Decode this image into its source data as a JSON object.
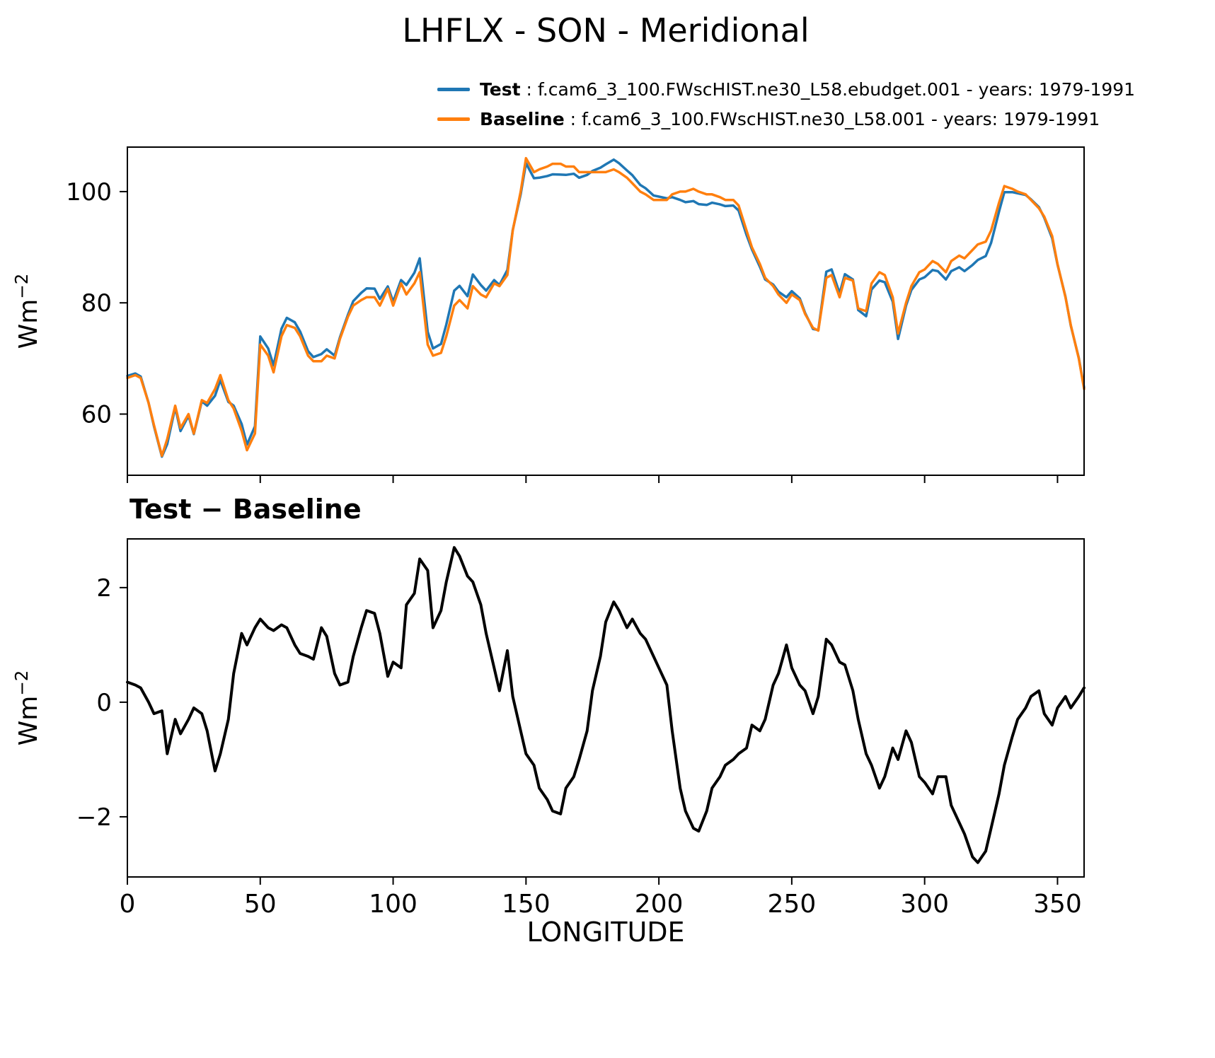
{
  "title": "LHFLX - SON - Meridional",
  "legend": [
    {
      "name": "Test",
      "text": " : f.cam6_3_100.FWscHIST.ne30_L58.ebudget.001 - years: 1979-1991",
      "color": "#1f77b4"
    },
    {
      "name": "Baseline",
      "text": " : f.cam6_3_100.FWscHIST.ne30_L58.001 - years: 1979-1991",
      "color": "#ff7f0e"
    }
  ],
  "chart_data": [
    {
      "type": "line",
      "panel": "main",
      "ylabel_base": "Wm",
      "ylabel_exp": "−2",
      "xlim": [
        0,
        360
      ],
      "ylim": [
        49,
        108
      ],
      "yticks": [
        60,
        80,
        100
      ],
      "ytick_labels": [
        "60",
        "80",
        "100"
      ],
      "xticks": [
        0,
        50,
        100,
        150,
        200,
        250,
        300,
        350
      ],
      "xtick_labels": null,
      "grid": false,
      "x": [
        0,
        3,
        5,
        8,
        10,
        13,
        15,
        18,
        20,
        23,
        25,
        28,
        30,
        33,
        35,
        38,
        40,
        43,
        45,
        48,
        50,
        53,
        55,
        58,
        60,
        63,
        65,
        68,
        70,
        73,
        75,
        78,
        80,
        83,
        85,
        88,
        90,
        93,
        95,
        98,
        100,
        103,
        105,
        108,
        110,
        113,
        115,
        118,
        120,
        123,
        125,
        128,
        130,
        133,
        135,
        138,
        140,
        143,
        145,
        148,
        150,
        153,
        155,
        158,
        160,
        163,
        165,
        168,
        170,
        173,
        175,
        178,
        180,
        183,
        185,
        188,
        190,
        193,
        195,
        198,
        200,
        203,
        205,
        208,
        210,
        213,
        215,
        218,
        220,
        223,
        225,
        228,
        230,
        233,
        235,
        238,
        240,
        243,
        245,
        248,
        250,
        253,
        255,
        258,
        260,
        263,
        265,
        268,
        270,
        273,
        275,
        278,
        280,
        283,
        285,
        288,
        290,
        293,
        295,
        298,
        300,
        303,
        305,
        308,
        310,
        313,
        315,
        318,
        320,
        323,
        325,
        328,
        330,
        333,
        335,
        338,
        340,
        343,
        345,
        348,
        350,
        353,
        355,
        358,
        360
      ],
      "series": [
        {
          "name": "Test",
          "color": "#1f77b4",
          "values": [
            66.85,
            67.3,
            66.75,
            62,
            57.8,
            52.35,
            54.6,
            61.2,
            56.95,
            59.7,
            56.4,
            62.3,
            61.5,
            63.3,
            66.1,
            62.2,
            61.5,
            58.2,
            54.5,
            57.8,
            73.95,
            71.8,
            68.75,
            75.35,
            77.3,
            76.5,
            74.85,
            71.3,
            70.25,
            70.8,
            71.65,
            70.5,
            73.8,
            77.85,
            80.3,
            81.8,
            82.6,
            82.55,
            80.7,
            82.95,
            80.2,
            84.1,
            83.2,
            85.4,
            88,
            74.8,
            71.8,
            72.6,
            76.1,
            82.2,
            83.05,
            81.2,
            85.1,
            83.2,
            82.2,
            84.1,
            83.2,
            85.9,
            93.1,
            99.5,
            105.1,
            102.4,
            102.5,
            102.8,
            103.1,
            103.05,
            103,
            103.2,
            102.5,
            103,
            103.7,
            104.3,
            104.9,
            105.75,
            105.1,
            103.8,
            102.95,
            101.2,
            100.6,
            99.3,
            99.1,
            98.8,
            99,
            98.5,
            98.1,
            98.3,
            97.75,
            97.6,
            98,
            97.7,
            97.4,
            97.5,
            96.6,
            92.2,
            89.6,
            86.5,
            84.2,
            83.3,
            82,
            81,
            82.1,
            80.8,
            78.2,
            75.3,
            75.1,
            85.6,
            86,
            81.7,
            85.15,
            84.2,
            78.7,
            77.6,
            82.4,
            84,
            83.7,
            80.2,
            73.5,
            79.5,
            82.3,
            84.2,
            84.6,
            85.9,
            85.7,
            84.2,
            85.7,
            86.4,
            85.7,
            86.8,
            87.7,
            88.4,
            90.8,
            96.4,
            99.9,
            99.9,
            99.7,
            99.4,
            98.6,
            97.2,
            95.3,
            91.6,
            86.9,
            81.1,
            75.9,
            70.1,
            64.75
          ]
        },
        {
          "name": "Baseline",
          "color": "#ff7f0e",
          "values": [
            66.5,
            67,
            66.5,
            62,
            58,
            52.5,
            55.5,
            61.5,
            57.5,
            60,
            56.5,
            62.5,
            62,
            64.5,
            67,
            62.5,
            61,
            57,
            53.5,
            56.5,
            72.5,
            70.5,
            67.5,
            74,
            76,
            75.5,
            74,
            70.5,
            69.5,
            69.5,
            70.5,
            70,
            73.5,
            77.5,
            79.5,
            80.5,
            81,
            81,
            79.5,
            82.5,
            79.5,
            83.5,
            81.5,
            83.5,
            85.5,
            72.5,
            70.5,
            71,
            74,
            79.5,
            80.5,
            79,
            83,
            81.5,
            81,
            83.5,
            83,
            85,
            93,
            100,
            106,
            103.5,
            104,
            104.5,
            105,
            105,
            104.5,
            104.5,
            103.5,
            103.5,
            103.5,
            103.5,
            103.5,
            104,
            103.5,
            102.5,
            101.5,
            100,
            99.5,
            98.5,
            98.5,
            98.5,
            99.5,
            100,
            100,
            100.5,
            100,
            99.5,
            99.5,
            99,
            98.5,
            98.5,
            97.5,
            93,
            90,
            87,
            84.5,
            83,
            81.5,
            80,
            81.5,
            80.5,
            78,
            75.5,
            75,
            84.5,
            85,
            81,
            84.5,
            84,
            79,
            78.5,
            83.5,
            85.5,
            85,
            81,
            74.5,
            80,
            83,
            85.5,
            86,
            87.5,
            87,
            85.5,
            87.5,
            88.5,
            88,
            89.5,
            90.5,
            91,
            93,
            98,
            101,
            100.5,
            100,
            99.5,
            98.5,
            97,
            95.5,
            92,
            87,
            81,
            76,
            70,
            64.5
          ]
        }
      ]
    },
    {
      "type": "line",
      "panel": "difference",
      "subtitle": "Test − Baseline",
      "xlabel": "LONGITUDE",
      "ylabel_base": "Wm",
      "ylabel_exp": "−2",
      "xlim": [
        0,
        360
      ],
      "ylim": [
        -3.05,
        2.85
      ],
      "yticks": [
        -2,
        0,
        2
      ],
      "ytick_labels": [
        "−2",
        "0",
        "2"
      ],
      "xticks": [
        0,
        50,
        100,
        150,
        200,
        250,
        300,
        350
      ],
      "xtick_labels": [
        "0",
        "50",
        "100",
        "150",
        "200",
        "250",
        "300",
        "350"
      ],
      "grid": false,
      "x": [
        0,
        3,
        5,
        8,
        10,
        13,
        15,
        18,
        20,
        23,
        25,
        28,
        30,
        33,
        35,
        38,
        40,
        43,
        45,
        48,
        50,
        53,
        55,
        58,
        60,
        63,
        65,
        68,
        70,
        73,
        75,
        78,
        80,
        83,
        85,
        88,
        90,
        93,
        95,
        98,
        100,
        103,
        105,
        108,
        110,
        113,
        115,
        118,
        120,
        123,
        125,
        128,
        130,
        133,
        135,
        138,
        140,
        143,
        145,
        148,
        150,
        153,
        155,
        158,
        160,
        163,
        165,
        168,
        170,
        173,
        175,
        178,
        180,
        183,
        185,
        188,
        190,
        193,
        195,
        198,
        200,
        203,
        205,
        208,
        210,
        213,
        215,
        218,
        220,
        223,
        225,
        228,
        230,
        233,
        235,
        238,
        240,
        243,
        245,
        248,
        250,
        253,
        255,
        258,
        260,
        263,
        265,
        268,
        270,
        273,
        275,
        278,
        280,
        283,
        285,
        288,
        290,
        293,
        295,
        298,
        300,
        303,
        305,
        308,
        310,
        313,
        315,
        318,
        320,
        323,
        325,
        328,
        330,
        333,
        335,
        338,
        340,
        343,
        345,
        348,
        350,
        353,
        355,
        358,
        360
      ],
      "series": [
        {
          "name": "Test − Baseline",
          "color": "#000000",
          "values": [
            0.35,
            0.3,
            0.25,
            0,
            -0.2,
            -0.15,
            -0.9,
            -0.3,
            -0.55,
            -0.3,
            -0.1,
            -0.2,
            -0.5,
            -1.2,
            -0.9,
            -0.3,
            0.5,
            1.2,
            1,
            1.3,
            1.45,
            1.3,
            1.25,
            1.35,
            1.3,
            1,
            0.85,
            0.8,
            0.75,
            1.3,
            1.15,
            0.5,
            0.3,
            0.35,
            0.8,
            1.3,
            1.6,
            1.55,
            1.2,
            0.45,
            0.7,
            0.6,
            1.7,
            1.9,
            2.5,
            2.3,
            1.3,
            1.6,
            2.1,
            2.7,
            2.55,
            2.2,
            2.1,
            1.7,
            1.2,
            0.6,
            0.2,
            0.9,
            0.1,
            -0.5,
            -0.9,
            -1.1,
            -1.5,
            -1.7,
            -1.9,
            -1.95,
            -1.5,
            -1.3,
            -1,
            -0.5,
            0.2,
            0.8,
            1.4,
            1.75,
            1.6,
            1.3,
            1.45,
            1.2,
            1.1,
            0.8,
            0.6,
            0.3,
            -0.5,
            -1.5,
            -1.9,
            -2.2,
            -2.25,
            -1.9,
            -1.5,
            -1.3,
            -1.1,
            -1,
            -0.9,
            -0.8,
            -0.4,
            -0.5,
            -0.3,
            0.3,
            0.5,
            1,
            0.6,
            0.3,
            0.2,
            -0.2,
            0.1,
            1.1,
            1,
            0.7,
            0.65,
            0.2,
            -0.3,
            -0.9,
            -1.1,
            -1.5,
            -1.3,
            -0.8,
            -1,
            -0.5,
            -0.7,
            -1.3,
            -1.4,
            -1.6,
            -1.3,
            -1.3,
            -1.8,
            -2.1,
            -2.3,
            -2.7,
            -2.8,
            -2.6,
            -2.2,
            -1.6,
            -1.1,
            -0.6,
            -0.3,
            -0.1,
            0.1,
            0.2,
            -0.2,
            -0.4,
            -0.1,
            0.1,
            -0.1,
            0.1,
            0.25
          ]
        }
      ]
    }
  ]
}
